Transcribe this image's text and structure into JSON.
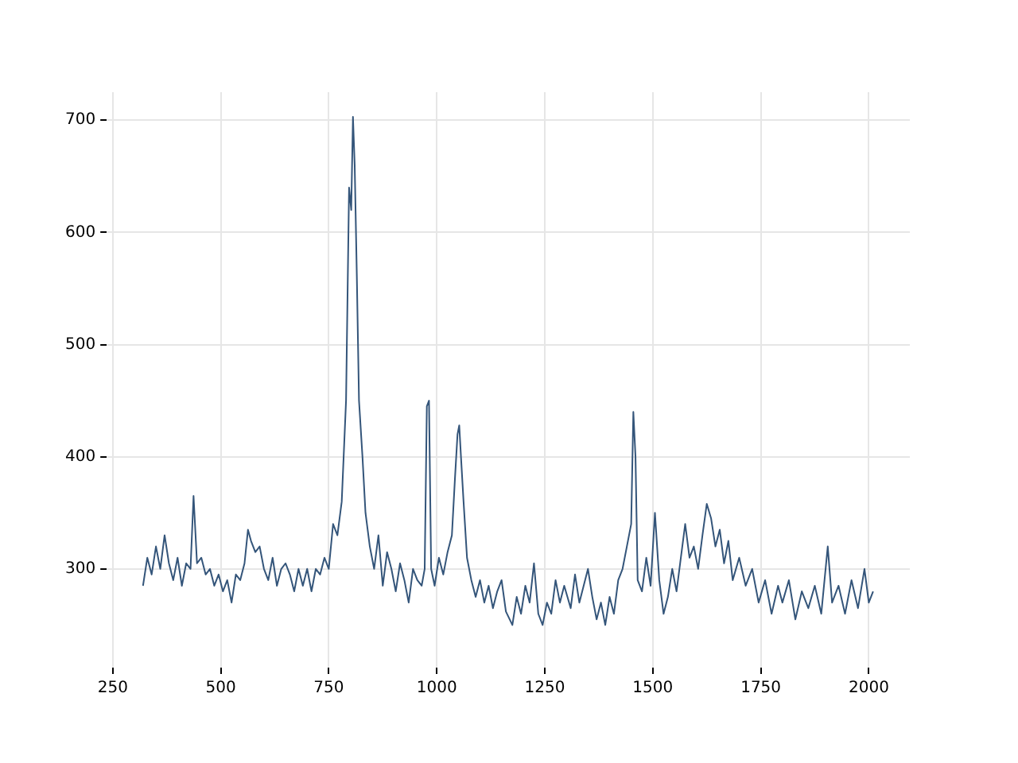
{
  "chart_data": {
    "type": "line",
    "xlim": [
      236,
      2095
    ],
    "ylim": [
      212,
      725
    ],
    "xticks": [
      250,
      500,
      750,
      1000,
      1250,
      1500,
      1750,
      2000
    ],
    "yticks": [
      300,
      400,
      500,
      600,
      700
    ],
    "grid": true,
    "legend": false,
    "marker": "none",
    "line_style": "solid",
    "series": [
      {
        "color": "#34557a",
        "x": [
          320,
          330,
          340,
          350,
          360,
          370,
          380,
          390,
          400,
          410,
          420,
          430,
          437,
          445,
          455,
          465,
          475,
          485,
          495,
          505,
          515,
          525,
          535,
          545,
          555,
          563,
          570,
          580,
          590,
          600,
          610,
          620,
          630,
          640,
          650,
          660,
          670,
          680,
          690,
          700,
          710,
          720,
          730,
          740,
          750,
          760,
          770,
          780,
          790,
          797,
          802,
          806,
          810,
          815,
          820,
          828,
          835,
          845,
          855,
          865,
          875,
          885,
          895,
          905,
          915,
          925,
          935,
          945,
          955,
          965,
          972,
          977,
          982,
          987,
          995,
          1005,
          1015,
          1025,
          1035,
          1042,
          1048,
          1052,
          1056,
          1062,
          1070,
          1080,
          1090,
          1100,
          1110,
          1120,
          1130,
          1140,
          1150,
          1160,
          1175,
          1185,
          1195,
          1205,
          1215,
          1225,
          1235,
          1245,
          1255,
          1265,
          1275,
          1285,
          1295,
          1310,
          1320,
          1330,
          1340,
          1350,
          1360,
          1370,
          1380,
          1390,
          1400,
          1410,
          1420,
          1430,
          1440,
          1450,
          1455,
          1460,
          1465,
          1475,
          1485,
          1495,
          1505,
          1515,
          1525,
          1535,
          1545,
          1555,
          1565,
          1575,
          1585,
          1595,
          1605,
          1615,
          1625,
          1635,
          1645,
          1655,
          1665,
          1675,
          1685,
          1700,
          1715,
          1730,
          1745,
          1760,
          1775,
          1790,
          1800,
          1815,
          1830,
          1845,
          1860,
          1875,
          1890,
          1905,
          1915,
          1930,
          1945,
          1960,
          1975,
          1990,
          2000,
          2010
        ],
        "values": [
          285,
          310,
          295,
          320,
          300,
          330,
          305,
          290,
          310,
          285,
          305,
          300,
          365,
          305,
          310,
          295,
          300,
          285,
          295,
          280,
          290,
          270,
          295,
          290,
          305,
          335,
          325,
          315,
          320,
          300,
          290,
          310,
          285,
          300,
          305,
          295,
          280,
          300,
          285,
          300,
          280,
          300,
          295,
          310,
          300,
          340,
          330,
          360,
          450,
          640,
          620,
          703,
          660,
          560,
          450,
          400,
          350,
          320,
          300,
          330,
          285,
          315,
          300,
          280,
          305,
          290,
          270,
          300,
          290,
          285,
          300,
          445,
          450,
          300,
          285,
          310,
          295,
          315,
          330,
          380,
          420,
          428,
          400,
          360,
          310,
          290,
          275,
          290,
          270,
          285,
          265,
          280,
          290,
          262,
          250,
          275,
          260,
          285,
          270,
          305,
          260,
          250,
          270,
          260,
          290,
          270,
          285,
          265,
          295,
          270,
          285,
          300,
          275,
          255,
          270,
          250,
          275,
          260,
          290,
          300,
          320,
          340,
          440,
          400,
          290,
          280,
          310,
          285,
          350,
          290,
          260,
          275,
          300,
          280,
          310,
          340,
          310,
          320,
          300,
          330,
          358,
          345,
          320,
          335,
          305,
          325,
          290,
          310,
          285,
          300,
          270,
          290,
          260,
          285,
          270,
          290,
          255,
          280,
          265,
          285,
          260,
          320,
          270,
          285,
          260,
          290,
          265,
          300,
          270,
          280
        ]
      }
    ]
  }
}
